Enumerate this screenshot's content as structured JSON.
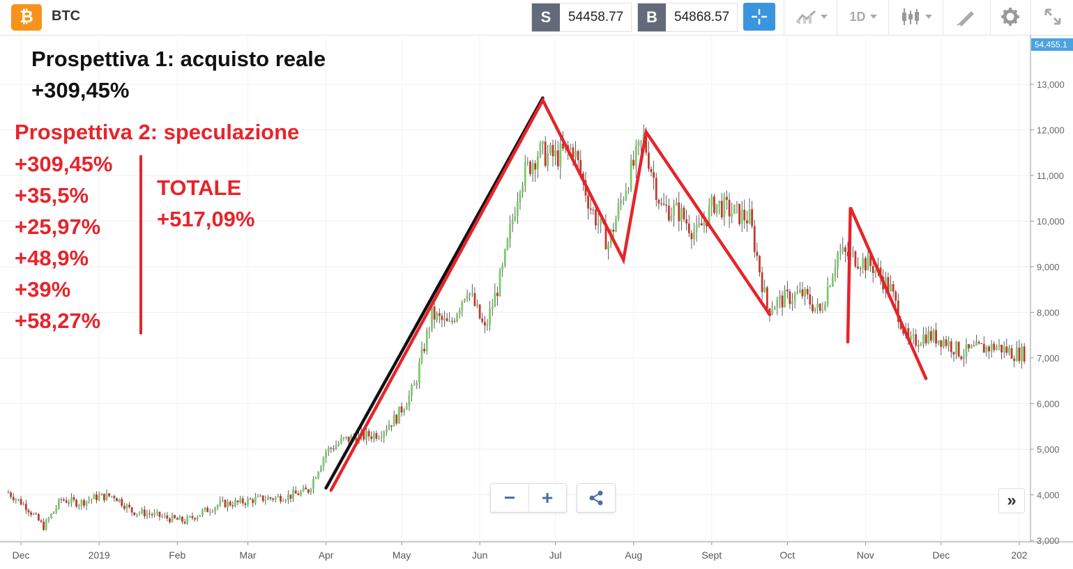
{
  "toolbar": {
    "symbol": "BTC",
    "coin_icon": "bitcoin-icon",
    "coin_glyph": "₿",
    "sell_tag": "S",
    "sell_price": "54458.77",
    "buy_tag": "B",
    "buy_price": "54868.57",
    "timeframe": "1D",
    "icons": [
      "crosshair-icon",
      "line-chart-icon",
      "candlestick-icon",
      "drawing-icon",
      "gear-icon",
      "fullscreen-icon"
    ],
    "accent": "#3a95e0"
  },
  "annotations": {
    "p1_title": "Prospettiva 1: acquisto reale",
    "p1_value": "+309,45%",
    "p2_title": "Prospettiva 2: speculazione",
    "p2_values": [
      "+309,45%",
      "+35,5%",
      "+25,97%",
      "+48,9%",
      "+39%",
      "+58,27%"
    ],
    "total_label": "TOTALE",
    "total_value": "+517,09%",
    "red": "#e6242b",
    "black": "#111111"
  },
  "controls": {
    "zoom_out": "−",
    "zoom_in": "+",
    "share_icon": "share-icon",
    "forward": "»"
  },
  "chart_data": {
    "type": "candlestick",
    "title": "",
    "xlabel": "",
    "ylabel": "",
    "x_ticks": [
      "Dec",
      "2019",
      "Feb",
      "Mar",
      "Apr",
      "May",
      "Jun",
      "Jul",
      "Aug",
      "Sept",
      "Oct",
      "Nov",
      "Dec",
      "202"
    ],
    "y_ticks": [
      "3,000",
      "4,000",
      "5,000",
      "6,000",
      "7,000",
      "8,000",
      "9,000",
      "10,000",
      "11,000",
      "12,000",
      "13,000"
    ],
    "ylim": [
      2990,
      14000
    ],
    "x_range": [
      "2018-11-26",
      "2020-01-06"
    ],
    "current_price_label": "54,455.1",
    "grid": true,
    "up_color": "#7cc96a",
    "down_color": "#c0392b",
    "closes": [
      [
        "2018-11-26",
        4050
      ],
      [
        "2018-12-03",
        3750
      ],
      [
        "2018-12-10",
        3300
      ],
      [
        "2018-12-17",
        3900
      ],
      [
        "2018-12-24",
        3820
      ],
      [
        "2018-12-31",
        3950
      ],
      [
        "2019-01-07",
        3980
      ],
      [
        "2019-01-14",
        3640
      ],
      [
        "2019-01-21",
        3580
      ],
      [
        "2019-01-28",
        3490
      ],
      [
        "2019-02-04",
        3420
      ],
      [
        "2019-02-11",
        3620
      ],
      [
        "2019-02-18",
        3800
      ],
      [
        "2019-02-25",
        3820
      ],
      [
        "2019-03-04",
        3900
      ],
      [
        "2019-03-11",
        3930
      ],
      [
        "2019-03-18",
        3980
      ],
      [
        "2019-03-25",
        4100
      ],
      [
        "2019-04-01",
        4950
      ],
      [
        "2019-04-08",
        5200
      ],
      [
        "2019-04-15",
        5270
      ],
      [
        "2019-04-22",
        5350
      ],
      [
        "2019-04-29",
        5700
      ],
      [
        "2019-05-06",
        6350
      ],
      [
        "2019-05-13",
        7950
      ],
      [
        "2019-05-20",
        7700
      ],
      [
        "2019-05-27",
        8550
      ],
      [
        "2019-06-03",
        7600
      ],
      [
        "2019-06-10",
        8900
      ],
      [
        "2019-06-17",
        10900
      ],
      [
        "2019-06-24",
        11500
      ],
      [
        "2019-07-01",
        11400
      ],
      [
        "2019-07-08",
        11600
      ],
      [
        "2019-07-15",
        10300
      ],
      [
        "2019-07-22",
        9500
      ],
      [
        "2019-07-29",
        10800
      ],
      [
        "2019-08-05",
        11800
      ],
      [
        "2019-08-12",
        10300
      ],
      [
        "2019-08-19",
        10200
      ],
      [
        "2019-08-26",
        9700
      ],
      [
        "2019-09-02",
        10400
      ],
      [
        "2019-09-09",
        10200
      ],
      [
        "2019-09-16",
        10050
      ],
      [
        "2019-09-23",
        8100
      ],
      [
        "2019-09-30",
        8300
      ],
      [
        "2019-10-07",
        8400
      ],
      [
        "2019-10-14",
        8000
      ],
      [
        "2019-10-21",
        9300
      ],
      [
        "2019-10-28",
        9200
      ],
      [
        "2019-11-04",
        9000
      ],
      [
        "2019-11-11",
        8500
      ],
      [
        "2019-11-18",
        7300
      ],
      [
        "2019-11-25",
        7500
      ],
      [
        "2019-12-02",
        7400
      ],
      [
        "2019-12-09",
        7100
      ],
      [
        "2019-12-16",
        7200
      ],
      [
        "2019-12-23",
        7250
      ],
      [
        "2019-12-30",
        7100
      ]
    ],
    "overlay_lines": [
      {
        "color": "black",
        "points": [
          [
            "2019-04-01",
            4150
          ],
          [
            "2019-06-26",
            12700
          ]
        ]
      },
      {
        "color": "red",
        "points": [
          [
            "2019-04-03",
            4100
          ],
          [
            "2019-06-26",
            12650
          ],
          [
            "2019-07-28",
            9150
          ],
          [
            "2019-08-06",
            11950
          ],
          [
            "2019-09-24",
            7950
          ]
        ]
      },
      {
        "color": "red",
        "points": [
          [
            "2019-10-25",
            7350
          ],
          [
            "2019-10-26",
            10300
          ],
          [
            "2019-11-25",
            6550
          ]
        ]
      }
    ]
  }
}
